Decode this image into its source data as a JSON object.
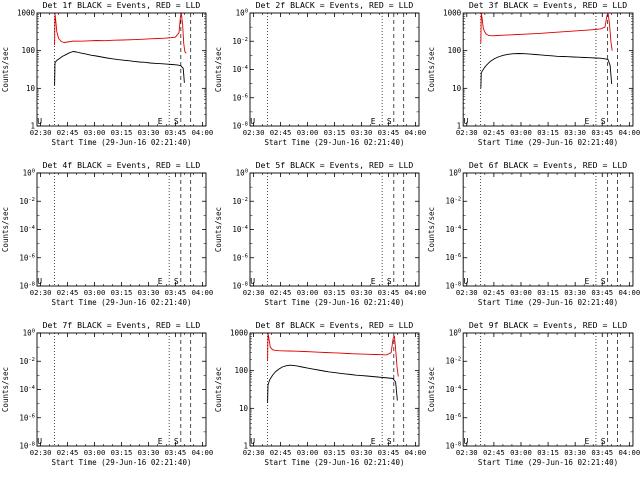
{
  "page": {
    "background": "#ffffff"
  },
  "colors": {
    "events": "#000000",
    "lld": "#dd0000",
    "axis": "#000000"
  },
  "shared": {
    "xlabel": "Start Time (29-Jun-16 02:21:40)",
    "ylabel": "Counts/sec",
    "x_range_minutes": [
      148,
      242
    ],
    "x_minor_step": 5,
    "xticks": [
      {
        "t": 150,
        "label": "02:30"
      },
      {
        "t": 165,
        "label": "02:45"
      },
      {
        "t": 180,
        "label": "03:00"
      },
      {
        "t": 195,
        "label": "03:15"
      },
      {
        "t": 210,
        "label": "03:30"
      },
      {
        "t": 225,
        "label": "03:45"
      },
      {
        "t": 240,
        "label": "04:00"
      }
    ],
    "flag_lines": [
      {
        "t": 157.7,
        "style": "dotted"
      },
      {
        "t": 221.5,
        "style": "dotted"
      },
      {
        "t": 228.0,
        "style": "dashed"
      },
      {
        "t": 233.5,
        "style": "dashed"
      }
    ],
    "flag_letters": [
      {
        "t": 149.5,
        "char": "U"
      },
      {
        "t": 216.5,
        "char": "E"
      },
      {
        "t": 225.5,
        "char": "S"
      }
    ]
  },
  "chart_data": [
    {
      "id": "det-1f",
      "type": "line",
      "title": "Det 1f BLACK = Events, RED = LLD",
      "ylog_range": [
        1,
        1000
      ],
      "yticks": [
        {
          "v": 1000,
          "label": "1000"
        },
        {
          "v": 100,
          "label": "100"
        },
        {
          "v": 10,
          "label": "10"
        },
        {
          "v": 1,
          "label": "1"
        }
      ],
      "y_minor": "mults",
      "series": [
        {
          "name": "LLD",
          "color_key": "lld",
          "points": [
            [
              157.8,
              140
            ],
            [
              158.0,
              950
            ],
            [
              158.4,
              650
            ],
            [
              159.0,
              320
            ],
            [
              160.0,
              210
            ],
            [
              161.5,
              175
            ],
            [
              163.0,
              165
            ],
            [
              165.0,
              170
            ],
            [
              168.0,
              180
            ],
            [
              172.0,
              178
            ],
            [
              176.0,
              182
            ],
            [
              181.0,
              186
            ],
            [
              186.0,
              184
            ],
            [
              191.0,
              190
            ],
            [
              196.0,
              192
            ],
            [
              201.0,
              196
            ],
            [
              206.0,
              200
            ],
            [
              211.0,
              206
            ],
            [
              215.0,
              210
            ],
            [
              219.0,
              214
            ],
            [
              222.0,
              220
            ],
            [
              225.0,
              228
            ],
            [
              227.0,
              300
            ],
            [
              227.8,
              820
            ],
            [
              228.3,
              950
            ],
            [
              229.0,
              500
            ],
            [
              229.6,
              160
            ],
            [
              230.2,
              95
            ],
            [
              231.0,
              85
            ]
          ]
        },
        {
          "name": "Events",
          "color_key": "events",
          "points": [
            [
              157.8,
              12
            ],
            [
              158.0,
              48
            ],
            [
              159.0,
              55
            ],
            [
              160.5,
              62
            ],
            [
              162.0,
              70
            ],
            [
              164.0,
              78
            ],
            [
              166.0,
              88
            ],
            [
              168.0,
              95
            ],
            [
              170.0,
              92
            ],
            [
              172.5,
              86
            ],
            [
              175.0,
              82
            ],
            [
              178.0,
              76
            ],
            [
              181.0,
              72
            ],
            [
              184.0,
              68
            ],
            [
              187.0,
              64
            ],
            [
              190.0,
              61
            ],
            [
              193.0,
              58
            ],
            [
              196.0,
              56
            ],
            [
              199.0,
              54
            ],
            [
              202.0,
              52
            ],
            [
              205.0,
              50
            ],
            [
              208.0,
              49
            ],
            [
              211.0,
              47
            ],
            [
              214.0,
              46
            ],
            [
              217.0,
              45
            ],
            [
              220.0,
              44
            ],
            [
              223.0,
              43
            ],
            [
              226.0,
              42
            ],
            [
              228.0,
              40
            ],
            [
              229.3,
              34
            ],
            [
              230.0,
              14
            ]
          ]
        }
      ]
    },
    {
      "id": "det-2f",
      "type": "line",
      "title": "Det 2f BLACK = Events, RED = LLD",
      "ylog_range": [
        1e-08,
        1
      ],
      "yticks": [
        {
          "v": 1,
          "label": "10^0"
        },
        {
          "v": 0.01,
          "label": "10^-2"
        },
        {
          "v": 0.0001,
          "label": "10^-4"
        },
        {
          "v": 1e-06,
          "label": "10^-6"
        },
        {
          "v": 1e-08,
          "label": "10^-8"
        }
      ],
      "y_minor": "decades",
      "series": []
    },
    {
      "id": "det-3f",
      "type": "line",
      "title": "Det 3f BLACK = Events, RED = LLD",
      "ylog_range": [
        1,
        1000
      ],
      "yticks": [
        {
          "v": 1000,
          "label": "1000"
        },
        {
          "v": 100,
          "label": "100"
        },
        {
          "v": 10,
          "label": "10"
        },
        {
          "v": 1,
          "label": "1"
        }
      ],
      "y_minor": "mults",
      "series": [
        {
          "name": "LLD",
          "color_key": "lld",
          "points": [
            [
              157.8,
              160
            ],
            [
              158.0,
              1000
            ],
            [
              158.5,
              700
            ],
            [
              159.2,
              380
            ],
            [
              160.5,
              280
            ],
            [
              162.0,
              255
            ],
            [
              164.0,
              248
            ],
            [
              167.0,
              252
            ],
            [
              170.0,
              258
            ],
            [
              174.0,
              262
            ],
            [
              178.0,
              268
            ],
            [
              182.0,
              274
            ],
            [
              186.0,
              280
            ],
            [
              190.0,
              288
            ],
            [
              194.0,
              296
            ],
            [
              198.0,
              305
            ],
            [
              202.0,
              315
            ],
            [
              206.0,
              325
            ],
            [
              210.0,
              335
            ],
            [
              214.0,
              345
            ],
            [
              218.0,
              355
            ],
            [
              221.0,
              365
            ],
            [
              224.0,
              378
            ],
            [
              226.5,
              420
            ],
            [
              227.6,
              850
            ],
            [
              228.2,
              1000
            ],
            [
              229.0,
              520
            ],
            [
              229.8,
              170
            ],
            [
              230.5,
              100
            ]
          ]
        },
        {
          "name": "Events",
          "color_key": "events",
          "points": [
            [
              157.8,
              10
            ],
            [
              158.0,
              26
            ],
            [
              159.5,
              34
            ],
            [
              161.0,
              42
            ],
            [
              163.0,
              52
            ],
            [
              165.5,
              62
            ],
            [
              168.0,
              70
            ],
            [
              170.5,
              76
            ],
            [
              173.0,
              80
            ],
            [
              176.0,
              83
            ],
            [
              179.0,
              84
            ],
            [
              182.0,
              83
            ],
            [
              185.0,
              81
            ],
            [
              188.0,
              79
            ],
            [
              191.0,
              77
            ],
            [
              194.0,
              75
            ],
            [
              197.0,
              73
            ],
            [
              200.0,
              71
            ],
            [
              203.0,
              70
            ],
            [
              206.0,
              69
            ],
            [
              209.0,
              68
            ],
            [
              212.0,
              67
            ],
            [
              215.0,
              66
            ],
            [
              218.0,
              65
            ],
            [
              221.0,
              64
            ],
            [
              224.0,
              63
            ],
            [
              226.5,
              61
            ],
            [
              228.2,
              58
            ],
            [
              229.4,
              40
            ],
            [
              230.2,
              13
            ]
          ]
        }
      ]
    },
    {
      "id": "det-4f",
      "type": "line",
      "title": "Det 4f BLACK = Events, RED = LLD",
      "ylog_range": [
        1e-08,
        1
      ],
      "yticks": [
        {
          "v": 1,
          "label": "10^0"
        },
        {
          "v": 0.01,
          "label": "10^-2"
        },
        {
          "v": 0.0001,
          "label": "10^-4"
        },
        {
          "v": 1e-06,
          "label": "10^-6"
        },
        {
          "v": 1e-08,
          "label": "10^-8"
        }
      ],
      "y_minor": "decades",
      "series": []
    },
    {
      "id": "det-5f",
      "type": "line",
      "title": "Det 5f BLACK = Events, RED = LLD",
      "ylog_range": [
        1e-08,
        1
      ],
      "yticks": [
        {
          "v": 1,
          "label": "10^0"
        },
        {
          "v": 0.01,
          "label": "10^-2"
        },
        {
          "v": 0.0001,
          "label": "10^-4"
        },
        {
          "v": 1e-06,
          "label": "10^-6"
        },
        {
          "v": 1e-08,
          "label": "10^-8"
        }
      ],
      "y_minor": "decades",
      "series": []
    },
    {
      "id": "det-6f",
      "type": "line",
      "title": "Det 6f BLACK = Events, RED = LLD",
      "ylog_range": [
        1e-08,
        1
      ],
      "yticks": [
        {
          "v": 1,
          "label": "10^0"
        },
        {
          "v": 0.01,
          "label": "10^-2"
        },
        {
          "v": 0.0001,
          "label": "10^-4"
        },
        {
          "v": 1e-06,
          "label": "10^-6"
        },
        {
          "v": 1e-08,
          "label": "10^-8"
        }
      ],
      "y_minor": "decades",
      "series": []
    },
    {
      "id": "det-7f",
      "type": "line",
      "title": "Det 7f BLACK = Events, RED = LLD",
      "ylog_range": [
        1e-08,
        1
      ],
      "yticks": [
        {
          "v": 1,
          "label": "10^0"
        },
        {
          "v": 0.01,
          "label": "10^-2"
        },
        {
          "v": 0.0001,
          "label": "10^-4"
        },
        {
          "v": 1e-06,
          "label": "10^-6"
        },
        {
          "v": 1e-08,
          "label": "10^-8"
        }
      ],
      "y_minor": "decades",
      "series": []
    },
    {
      "id": "det-8f",
      "type": "line",
      "title": "Det 8f BLACK = Events, RED = LLD",
      "ylog_range": [
        1,
        1000
      ],
      "yticks": [
        {
          "v": 1000,
          "label": "1000"
        },
        {
          "v": 100,
          "label": "100"
        },
        {
          "v": 10,
          "label": "10"
        },
        {
          "v": 1,
          "label": "1"
        }
      ],
      "y_minor": "mults",
      "series": [
        {
          "name": "LLD",
          "color_key": "lld",
          "points": [
            [
              157.8,
              180
            ],
            [
              158.0,
              1000
            ],
            [
              158.5,
              720
            ],
            [
              159.3,
              420
            ],
            [
              160.5,
              360
            ],
            [
              162.0,
              345
            ],
            [
              164.0,
              338
            ],
            [
              167.0,
              335
            ],
            [
              170.0,
              332
            ],
            [
              174.0,
              328
            ],
            [
              178.0,
              322
            ],
            [
              182.0,
              316
            ],
            [
              186.0,
              310
            ],
            [
              190.0,
              304
            ],
            [
              194.0,
              298
            ],
            [
              198.0,
              292
            ],
            [
              202.0,
              286
            ],
            [
              206.0,
              281
            ],
            [
              210.0,
              276
            ],
            [
              214.0,
              272
            ],
            [
              218.0,
              268
            ],
            [
              221.0,
              265
            ],
            [
              224.0,
              262
            ],
            [
              226.5,
              300
            ],
            [
              227.6,
              700
            ],
            [
              228.3,
              820
            ],
            [
              229.0,
              380
            ],
            [
              229.8,
              120
            ],
            [
              230.5,
              70
            ]
          ]
        },
        {
          "name": "Events",
          "color_key": "events",
          "points": [
            [
              157.8,
              14
            ],
            [
              158.0,
              42
            ],
            [
              159.0,
              58
            ],
            [
              160.5,
              75
            ],
            [
              162.0,
              92
            ],
            [
              164.0,
              110
            ],
            [
              166.0,
              125
            ],
            [
              168.0,
              135
            ],
            [
              170.0,
              140
            ],
            [
              172.0,
              138
            ],
            [
              174.5,
              132
            ],
            [
              177.0,
              125
            ],
            [
              180.0,
              117
            ],
            [
              183.0,
              110
            ],
            [
              186.0,
              104
            ],
            [
              189.0,
              98
            ],
            [
              192.0,
              93
            ],
            [
              195.0,
              89
            ],
            [
              198.0,
              85
            ],
            [
              201.0,
              82
            ],
            [
              204.0,
              79
            ],
            [
              207.0,
              76
            ],
            [
              210.0,
              74
            ],
            [
              213.0,
              72
            ],
            [
              216.0,
              70
            ],
            [
              219.0,
              68
            ],
            [
              222.0,
              66
            ],
            [
              225.0,
              64
            ],
            [
              227.5,
              62
            ],
            [
              229.0,
              50
            ],
            [
              230.0,
              16
            ]
          ]
        }
      ]
    },
    {
      "id": "det-9f",
      "type": "line",
      "title": "Det 9f BLACK = Events, RED = LLD",
      "ylog_range": [
        1e-08,
        1
      ],
      "yticks": [
        {
          "v": 1,
          "label": "10^0"
        },
        {
          "v": 0.01,
          "label": "10^-2"
        },
        {
          "v": 0.0001,
          "label": "10^-4"
        },
        {
          "v": 1e-06,
          "label": "10^-6"
        },
        {
          "v": 1e-08,
          "label": "10^-8"
        }
      ],
      "y_minor": "decades",
      "series": []
    }
  ]
}
